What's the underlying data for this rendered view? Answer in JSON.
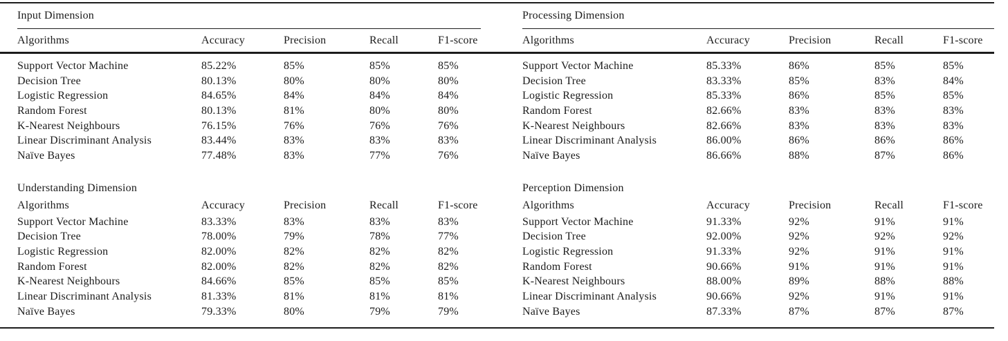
{
  "page": {
    "background_color": "#ffffff",
    "text_color": "#1b1b1b",
    "rule_color": "#1c1c1c"
  },
  "sections": [
    {
      "id": "input",
      "title": "Input Dimension",
      "columns": [
        "Algorithms",
        "Accuracy",
        "Precision",
        "Recall",
        "F1-score"
      ],
      "rows": [
        {
          "algorithm": "Support Vector Machine",
          "accuracy": "85.22%",
          "precision": "85%",
          "recall": "85%",
          "f1": "85%"
        },
        {
          "algorithm": "Decision Tree",
          "accuracy": "80.13%",
          "precision": "80%",
          "recall": "80%",
          "f1": "80%"
        },
        {
          "algorithm": "Logistic Regression",
          "accuracy": "84.65%",
          "precision": "84%",
          "recall": "84%",
          "f1": "84%"
        },
        {
          "algorithm": "Random Forest",
          "accuracy": "80.13%",
          "precision": "81%",
          "recall": "80%",
          "f1": "80%"
        },
        {
          "algorithm": "K-Nearest Neighbours",
          "accuracy": "76.15%",
          "precision": "76%",
          "recall": "76%",
          "f1": "76%"
        },
        {
          "algorithm": "Linear Discriminant Analysis",
          "accuracy": "83.44%",
          "precision": "83%",
          "recall": "83%",
          "f1": "83%"
        },
        {
          "algorithm": "Naïve Bayes",
          "accuracy": "77.48%",
          "precision": "83%",
          "recall": "77%",
          "f1": "76%"
        }
      ]
    },
    {
      "id": "processing",
      "title": "Processing Dimension",
      "columns": [
        "Algorithms",
        "Accuracy",
        "Precision",
        "Recall",
        "F1-score"
      ],
      "rows": [
        {
          "algorithm": "Support Vector Machine",
          "accuracy": "85.33%",
          "precision": "86%",
          "recall": "85%",
          "f1": "85%"
        },
        {
          "algorithm": "Decision Tree",
          "accuracy": "83.33%",
          "precision": "85%",
          "recall": "83%",
          "f1": "84%"
        },
        {
          "algorithm": "Logistic Regression",
          "accuracy": "85.33%",
          "precision": "86%",
          "recall": "85%",
          "f1": "85%"
        },
        {
          "algorithm": "Random Forest",
          "accuracy": "82.66%",
          "precision": "83%",
          "recall": "83%",
          "f1": "83%"
        },
        {
          "algorithm": "K-Nearest Neighbours",
          "accuracy": "82.66%",
          "precision": "83%",
          "recall": "83%",
          "f1": "83%"
        },
        {
          "algorithm": "Linear Discriminant Analysis",
          "accuracy": "86.00%",
          "precision": "86%",
          "recall": "86%",
          "f1": "86%"
        },
        {
          "algorithm": "Naïve Bayes",
          "accuracy": "86.66%",
          "precision": "88%",
          "recall": "87%",
          "f1": "86%"
        }
      ]
    },
    {
      "id": "understanding",
      "title": "Understanding Dimension",
      "columns": [
        "Algorithms",
        "Accuracy",
        "Precision",
        "Recall",
        "F1-score"
      ],
      "rows": [
        {
          "algorithm": "Support Vector Machine",
          "accuracy": "83.33%",
          "precision": "83%",
          "recall": "83%",
          "f1": "83%"
        },
        {
          "algorithm": "Decision Tree",
          "accuracy": "78.00%",
          "precision": "79%",
          "recall": "78%",
          "f1": "77%"
        },
        {
          "algorithm": "Logistic Regression",
          "accuracy": "82.00%",
          "precision": "82%",
          "recall": "82%",
          "f1": "82%"
        },
        {
          "algorithm": "Random Forest",
          "accuracy": "82.00%",
          "precision": "82%",
          "recall": "82%",
          "f1": "82%"
        },
        {
          "algorithm": "K-Nearest Neighbours",
          "accuracy": "84.66%",
          "precision": "85%",
          "recall": "85%",
          "f1": "85%"
        },
        {
          "algorithm": "Linear Discriminant Analysis",
          "accuracy": "81.33%",
          "precision": "81%",
          "recall": "81%",
          "f1": "81%"
        },
        {
          "algorithm": "Naïve Bayes",
          "accuracy": "79.33%",
          "precision": "80%",
          "recall": "79%",
          "f1": "79%"
        }
      ]
    },
    {
      "id": "perception",
      "title": "Perception Dimension",
      "columns": [
        "Algorithms",
        "Accuracy",
        "Precision",
        "Recall",
        "F1-score"
      ],
      "rows": [
        {
          "algorithm": "Support Vector Machine",
          "accuracy": "91.33%",
          "precision": "92%",
          "recall": "91%",
          "f1": "91%"
        },
        {
          "algorithm": "Decision Tree",
          "accuracy": "92.00%",
          "precision": "92%",
          "recall": "92%",
          "f1": "92%"
        },
        {
          "algorithm": "Logistic Regression",
          "accuracy": "91.33%",
          "precision": "92%",
          "recall": "91%",
          "f1": "91%"
        },
        {
          "algorithm": "Random Forest",
          "accuracy": "90.66%",
          "precision": "91%",
          "recall": "91%",
          "f1": "91%"
        },
        {
          "algorithm": "K-Nearest Neighbours",
          "accuracy": "88.00%",
          "precision": "89%",
          "recall": "88%",
          "f1": "88%"
        },
        {
          "algorithm": "Linear Discriminant Analysis",
          "accuracy": "90.66%",
          "precision": "92%",
          "recall": "91%",
          "f1": "91%"
        },
        {
          "algorithm": "Naïve Bayes",
          "accuracy": "87.33%",
          "precision": "87%",
          "recall": "87%",
          "f1": "87%"
        }
      ]
    }
  ]
}
